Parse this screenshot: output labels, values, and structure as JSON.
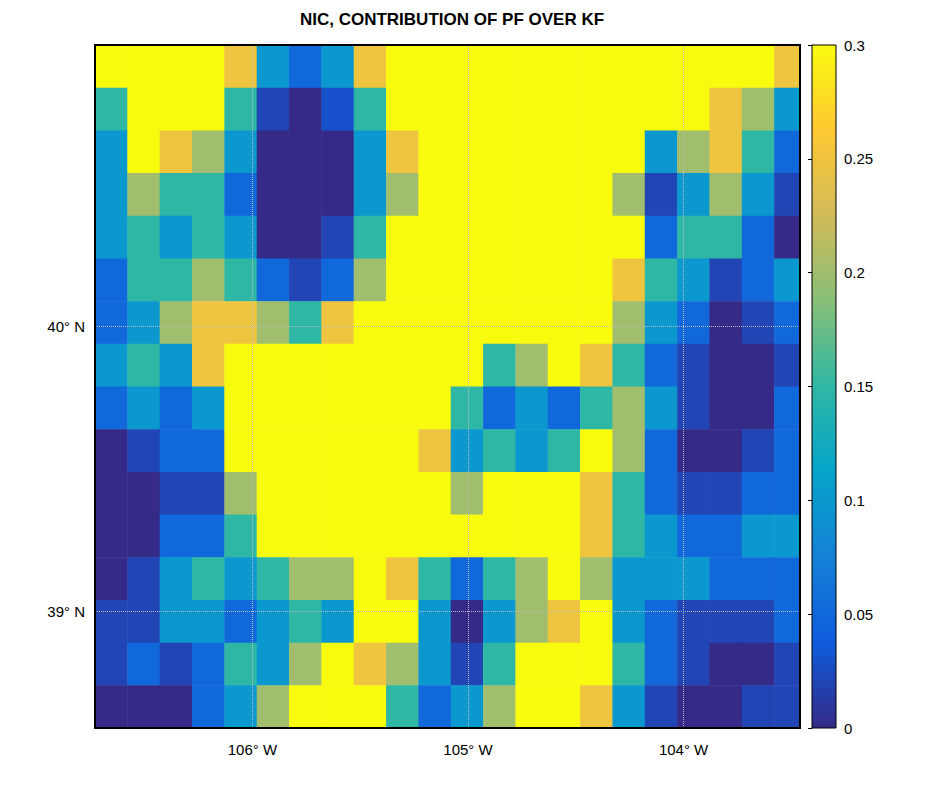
{
  "chart_data": {
    "type": "heatmap",
    "title": "NIC, CONTRIBUTION OF PF OVER KF",
    "x": [
      -106.655,
      -106.505,
      -106.355,
      -106.205,
      -106.055,
      -105.905,
      -105.755,
      -105.605,
      -105.455,
      -105.305,
      -105.155,
      -105.005,
      -104.855,
      -104.705,
      -104.555,
      -104.405,
      -104.255,
      -104.105,
      -103.955,
      -103.805,
      -103.655,
      -103.505
    ],
    "y": [
      40.915,
      40.765,
      40.615,
      40.465,
      40.315,
      40.165,
      40.015,
      39.865,
      39.715,
      39.565,
      39.415,
      39.265,
      39.115,
      38.965,
      38.815,
      38.665
    ],
    "values": [
      [
        0.3,
        0.3,
        0.3,
        0.3,
        0.25,
        0.1,
        0.05,
        0.1,
        0.25,
        0.3,
        0.3,
        0.3,
        0.3,
        0.3,
        0.3,
        0.3,
        0.3,
        0.3,
        0.3,
        0.3,
        0.3,
        0.25
      ],
      [
        0.15,
        0.3,
        0.3,
        0.3,
        0.15,
        0.02,
        0.0,
        0.03,
        0.15,
        0.3,
        0.3,
        0.3,
        0.3,
        0.3,
        0.3,
        0.3,
        0.3,
        0.3,
        0.3,
        0.25,
        0.2,
        0.1
      ],
      [
        0.1,
        0.3,
        0.25,
        0.2,
        0.1,
        0.0,
        0.0,
        0.0,
        0.1,
        0.25,
        0.3,
        0.3,
        0.3,
        0.3,
        0.3,
        0.3,
        0.3,
        0.1,
        0.2,
        0.25,
        0.15,
        0.05
      ],
      [
        0.1,
        0.2,
        0.15,
        0.15,
        0.05,
        0.0,
        0.0,
        0.0,
        0.1,
        0.2,
        0.3,
        0.3,
        0.3,
        0.3,
        0.3,
        0.3,
        0.2,
        0.02,
        0.1,
        0.2,
        0.1,
        0.02
      ],
      [
        0.1,
        0.15,
        0.1,
        0.15,
        0.1,
        0.0,
        0.0,
        0.02,
        0.15,
        0.3,
        0.3,
        0.3,
        0.3,
        0.3,
        0.3,
        0.3,
        0.3,
        0.05,
        0.15,
        0.15,
        0.05,
        0.0
      ],
      [
        0.05,
        0.15,
        0.15,
        0.2,
        0.15,
        0.05,
        0.02,
        0.05,
        0.2,
        0.3,
        0.3,
        0.3,
        0.3,
        0.3,
        0.3,
        0.3,
        0.25,
        0.15,
        0.1,
        0.02,
        0.05,
        0.1
      ],
      [
        0.05,
        0.1,
        0.2,
        0.25,
        0.25,
        0.2,
        0.15,
        0.25,
        0.3,
        0.3,
        0.3,
        0.3,
        0.3,
        0.3,
        0.3,
        0.3,
        0.2,
        0.1,
        0.05,
        0.0,
        0.02,
        0.05
      ],
      [
        0.1,
        0.15,
        0.1,
        0.25,
        0.3,
        0.3,
        0.3,
        0.3,
        0.3,
        0.3,
        0.3,
        0.3,
        0.15,
        0.2,
        0.3,
        0.25,
        0.15,
        0.05,
        0.02,
        0.0,
        0.0,
        0.02
      ],
      [
        0.05,
        0.1,
        0.05,
        0.1,
        0.3,
        0.3,
        0.3,
        0.3,
        0.3,
        0.3,
        0.3,
        0.15,
        0.05,
        0.1,
        0.05,
        0.15,
        0.2,
        0.1,
        0.02,
        0.0,
        0.0,
        0.05
      ],
      [
        0.0,
        0.02,
        0.05,
        0.05,
        0.3,
        0.3,
        0.3,
        0.3,
        0.3,
        0.3,
        0.25,
        0.1,
        0.15,
        0.1,
        0.15,
        0.3,
        0.2,
        0.05,
        0.0,
        0.0,
        0.02,
        0.05
      ],
      [
        0.0,
        0.0,
        0.02,
        0.02,
        0.2,
        0.3,
        0.3,
        0.3,
        0.3,
        0.3,
        0.3,
        0.2,
        0.3,
        0.3,
        0.3,
        0.25,
        0.15,
        0.05,
        0.02,
        0.02,
        0.05,
        0.05
      ],
      [
        0.0,
        0.0,
        0.05,
        0.05,
        0.15,
        0.3,
        0.3,
        0.3,
        0.3,
        0.3,
        0.3,
        0.3,
        0.3,
        0.3,
        0.3,
        0.25,
        0.15,
        0.1,
        0.05,
        0.05,
        0.1,
        0.1
      ],
      [
        0.0,
        0.02,
        0.1,
        0.15,
        0.1,
        0.15,
        0.2,
        0.2,
        0.3,
        0.25,
        0.15,
        0.05,
        0.15,
        0.2,
        0.3,
        0.2,
        0.1,
        0.1,
        0.1,
        0.05,
        0.05,
        0.05
      ],
      [
        0.02,
        0.02,
        0.1,
        0.1,
        0.05,
        0.1,
        0.15,
        0.1,
        0.3,
        0.3,
        0.1,
        0.0,
        0.1,
        0.2,
        0.25,
        0.3,
        0.1,
        0.05,
        0.02,
        0.02,
        0.02,
        0.05
      ],
      [
        0.02,
        0.05,
        0.02,
        0.05,
        0.15,
        0.1,
        0.2,
        0.3,
        0.25,
        0.2,
        0.1,
        0.02,
        0.15,
        0.3,
        0.3,
        0.3,
        0.15,
        0.05,
        0.02,
        0.0,
        0.0,
        0.02
      ],
      [
        0.0,
        0.0,
        0.0,
        0.05,
        0.1,
        0.2,
        0.3,
        0.3,
        0.3,
        0.15,
        0.05,
        0.1,
        0.2,
        0.3,
        0.3,
        0.25,
        0.1,
        0.02,
        0.0,
        0.0,
        0.02,
        0.02
      ]
    ],
    "xlim": [
      -106.73,
      -103.46
    ],
    "ylim": [
      38.59,
      40.99
    ],
    "xticks": [
      {
        "value": -106,
        "label": "106° W"
      },
      {
        "value": -105,
        "label": "105° W"
      },
      {
        "value": -104,
        "label": "104° W"
      }
    ],
    "yticks": [
      {
        "value": 39,
        "label": "39° N"
      },
      {
        "value": 40,
        "label": "40° N"
      }
    ],
    "color_range": [
      0,
      0.3
    ],
    "color_ticks": [
      0,
      0.05,
      0.1,
      0.15,
      0.2,
      0.25,
      0.3
    ],
    "grid": true
  }
}
